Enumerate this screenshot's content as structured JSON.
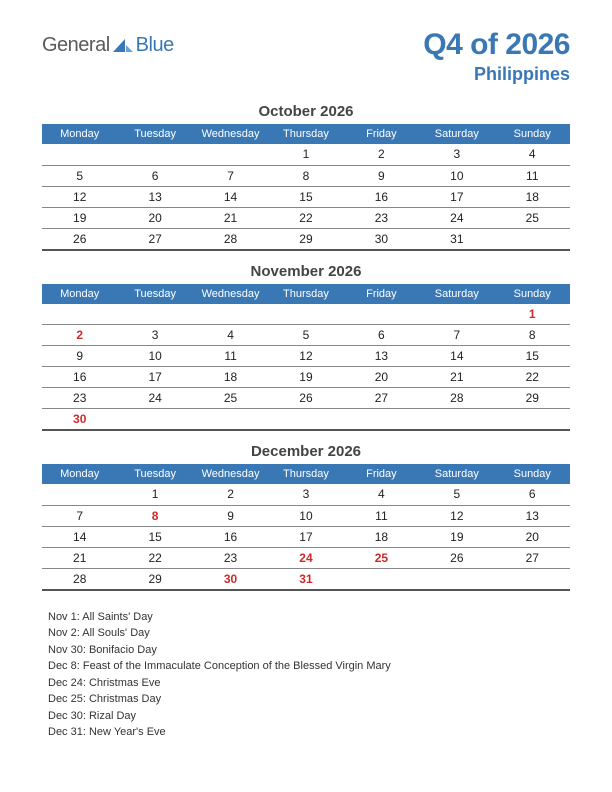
{
  "logo": {
    "word1": "General",
    "word2": "Blue"
  },
  "title": "Q4 of 2026",
  "subtitle": "Philippines",
  "colors": {
    "brand": "#3a78b5",
    "holiday": "#cc2b2b",
    "text": "#333333",
    "rule": "#888888",
    "ruleHeavy": "#555555",
    "bg": "#ffffff"
  },
  "day_headers": [
    "Monday",
    "Tuesday",
    "Wednesday",
    "Thursday",
    "Friday",
    "Saturday",
    "Sunday"
  ],
  "months": [
    {
      "title": "October 2026",
      "weeks": [
        [
          {
            "d": ""
          },
          {
            "d": ""
          },
          {
            "d": ""
          },
          {
            "d": "1"
          },
          {
            "d": "2"
          },
          {
            "d": "3"
          },
          {
            "d": "4"
          }
        ],
        [
          {
            "d": "5"
          },
          {
            "d": "6"
          },
          {
            "d": "7"
          },
          {
            "d": "8"
          },
          {
            "d": "9"
          },
          {
            "d": "10"
          },
          {
            "d": "11"
          }
        ],
        [
          {
            "d": "12"
          },
          {
            "d": "13"
          },
          {
            "d": "14"
          },
          {
            "d": "15"
          },
          {
            "d": "16"
          },
          {
            "d": "17"
          },
          {
            "d": "18"
          }
        ],
        [
          {
            "d": "19"
          },
          {
            "d": "20"
          },
          {
            "d": "21"
          },
          {
            "d": "22"
          },
          {
            "d": "23"
          },
          {
            "d": "24"
          },
          {
            "d": "25"
          }
        ],
        [
          {
            "d": "26"
          },
          {
            "d": "27"
          },
          {
            "d": "28"
          },
          {
            "d": "29"
          },
          {
            "d": "30"
          },
          {
            "d": "31"
          },
          {
            "d": ""
          }
        ]
      ]
    },
    {
      "title": "November 2026",
      "weeks": [
        [
          {
            "d": ""
          },
          {
            "d": ""
          },
          {
            "d": ""
          },
          {
            "d": ""
          },
          {
            "d": ""
          },
          {
            "d": ""
          },
          {
            "d": "1",
            "h": true
          }
        ],
        [
          {
            "d": "2",
            "h": true
          },
          {
            "d": "3"
          },
          {
            "d": "4"
          },
          {
            "d": "5"
          },
          {
            "d": "6"
          },
          {
            "d": "7"
          },
          {
            "d": "8"
          }
        ],
        [
          {
            "d": "9"
          },
          {
            "d": "10"
          },
          {
            "d": "11"
          },
          {
            "d": "12"
          },
          {
            "d": "13"
          },
          {
            "d": "14"
          },
          {
            "d": "15"
          }
        ],
        [
          {
            "d": "16"
          },
          {
            "d": "17"
          },
          {
            "d": "18"
          },
          {
            "d": "19"
          },
          {
            "d": "20"
          },
          {
            "d": "21"
          },
          {
            "d": "22"
          }
        ],
        [
          {
            "d": "23"
          },
          {
            "d": "24"
          },
          {
            "d": "25"
          },
          {
            "d": "26"
          },
          {
            "d": "27"
          },
          {
            "d": "28"
          },
          {
            "d": "29"
          }
        ],
        [
          {
            "d": "30",
            "h": true
          },
          {
            "d": ""
          },
          {
            "d": ""
          },
          {
            "d": ""
          },
          {
            "d": ""
          },
          {
            "d": ""
          },
          {
            "d": ""
          }
        ]
      ]
    },
    {
      "title": "December 2026",
      "weeks": [
        [
          {
            "d": ""
          },
          {
            "d": "1"
          },
          {
            "d": "2"
          },
          {
            "d": "3"
          },
          {
            "d": "4"
          },
          {
            "d": "5"
          },
          {
            "d": "6"
          }
        ],
        [
          {
            "d": "7"
          },
          {
            "d": "8",
            "h": true
          },
          {
            "d": "9"
          },
          {
            "d": "10"
          },
          {
            "d": "11"
          },
          {
            "d": "12"
          },
          {
            "d": "13"
          }
        ],
        [
          {
            "d": "14"
          },
          {
            "d": "15"
          },
          {
            "d": "16"
          },
          {
            "d": "17"
          },
          {
            "d": "18"
          },
          {
            "d": "19"
          },
          {
            "d": "20"
          }
        ],
        [
          {
            "d": "21"
          },
          {
            "d": "22"
          },
          {
            "d": "23"
          },
          {
            "d": "24",
            "h": true
          },
          {
            "d": "25",
            "h": true
          },
          {
            "d": "26"
          },
          {
            "d": "27"
          }
        ],
        [
          {
            "d": "28"
          },
          {
            "d": "29"
          },
          {
            "d": "30",
            "h": true
          },
          {
            "d": "31",
            "h": true
          },
          {
            "d": ""
          },
          {
            "d": ""
          },
          {
            "d": ""
          }
        ]
      ]
    }
  ],
  "holidays": [
    "Nov 1: All Saints' Day",
    "Nov 2: All Souls' Day",
    "Nov 30: Bonifacio Day",
    "Dec 8: Feast of the Immaculate Conception of the Blessed Virgin Mary",
    "Dec 24: Christmas Eve",
    "Dec 25: Christmas Day",
    "Dec 30: Rizal Day",
    "Dec 31: New Year's Eve"
  ]
}
